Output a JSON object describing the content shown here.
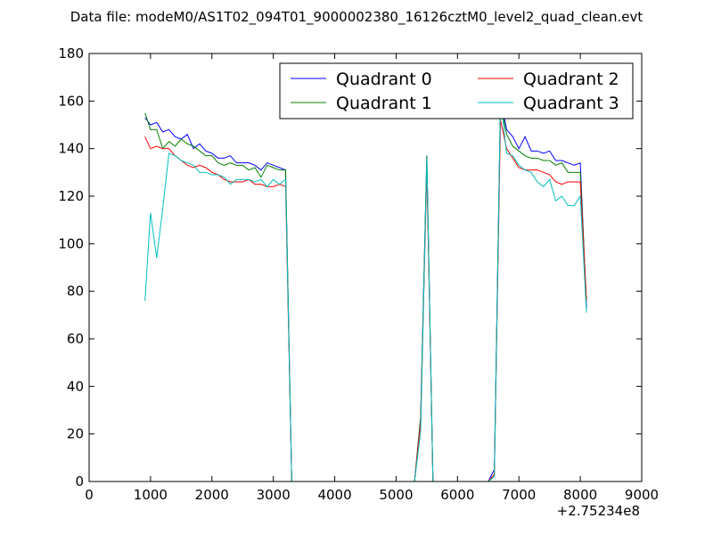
{
  "chart_data": {
    "type": "line",
    "title": "Data file: modeM0/AS1T02_094T01_9000002380_16126cztM0_level2_quad_clean.evt",
    "xlabel": "",
    "ylabel": "",
    "x_offset_label": "+2.75234e8",
    "xlim": [
      0,
      9000
    ],
    "ylim": [
      0,
      180
    ],
    "x_ticks": [
      0,
      1000,
      2000,
      3000,
      4000,
      5000,
      6000,
      7000,
      8000,
      9000
    ],
    "y_ticks": [
      0,
      20,
      40,
      60,
      80,
      100,
      120,
      140,
      160,
      180
    ],
    "x_tick_labels": [
      "0",
      "1000",
      "2000",
      "3000",
      "4000",
      "5000",
      "6000",
      "7000",
      "8000",
      "9000"
    ],
    "y_tick_labels": [
      "0",
      "20",
      "40",
      "60",
      "80",
      "100",
      "120",
      "140",
      "160",
      "180"
    ],
    "grid": false,
    "legend_position": "top-right",
    "series": [
      {
        "name": "Quadrant 0",
        "color": "#0000ff",
        "points": [
          [
            910,
            153
          ],
          [
            1000,
            150
          ],
          [
            1100,
            151
          ],
          [
            1200,
            147
          ],
          [
            1300,
            148
          ],
          [
            1400,
            145
          ],
          [
            1500,
            144
          ],
          [
            1600,
            146
          ],
          [
            1700,
            140
          ],
          [
            1800,
            142
          ],
          [
            1900,
            139
          ],
          [
            2000,
            138
          ],
          [
            2100,
            136
          ],
          [
            2200,
            136
          ],
          [
            2300,
            137
          ],
          [
            2400,
            134
          ],
          [
            2500,
            134
          ],
          [
            2600,
            134
          ],
          [
            2700,
            133
          ],
          [
            2800,
            131
          ],
          [
            2900,
            134
          ],
          [
            3000,
            133
          ],
          [
            3100,
            132
          ],
          [
            3200,
            131
          ],
          [
            3300,
            0
          ],
          [
            5300,
            0
          ],
          [
            5400,
            27
          ],
          [
            5500,
            137
          ],
          [
            5600,
            0
          ],
          [
            6500,
            0
          ],
          [
            6600,
            5
          ],
          [
            6700,
            161
          ],
          [
            6800,
            148
          ],
          [
            6900,
            145
          ],
          [
            7000,
            140
          ],
          [
            7100,
            145
          ],
          [
            7200,
            139
          ],
          [
            7300,
            139
          ],
          [
            7400,
            138
          ],
          [
            7500,
            139
          ],
          [
            7600,
            135
          ],
          [
            7700,
            135
          ],
          [
            7800,
            134
          ],
          [
            7900,
            133
          ],
          [
            8000,
            134
          ],
          [
            8100,
            73
          ]
        ]
      },
      {
        "name": "Quadrant 1",
        "color": "#008000",
        "points": [
          [
            910,
            155
          ],
          [
            1000,
            148
          ],
          [
            1100,
            148
          ],
          [
            1200,
            140
          ],
          [
            1300,
            143
          ],
          [
            1400,
            141
          ],
          [
            1500,
            144
          ],
          [
            1600,
            142
          ],
          [
            1700,
            141
          ],
          [
            1800,
            139
          ],
          [
            1900,
            137
          ],
          [
            2000,
            137
          ],
          [
            2100,
            134
          ],
          [
            2200,
            133
          ],
          [
            2300,
            134
          ],
          [
            2400,
            133
          ],
          [
            2500,
            133
          ],
          [
            2600,
            131
          ],
          [
            2700,
            132
          ],
          [
            2800,
            128
          ],
          [
            2900,
            133
          ],
          [
            3000,
            132
          ],
          [
            3100,
            131
          ],
          [
            3200,
            131
          ],
          [
            3300,
            0
          ],
          [
            5300,
            0
          ],
          [
            5400,
            27
          ],
          [
            5500,
            137
          ],
          [
            5600,
            0
          ],
          [
            6500,
            0
          ],
          [
            6600,
            3
          ],
          [
            6700,
            159
          ],
          [
            6800,
            146
          ],
          [
            6900,
            141
          ],
          [
            7000,
            139
          ],
          [
            7100,
            137
          ],
          [
            7200,
            136
          ],
          [
            7300,
            136
          ],
          [
            7400,
            135
          ],
          [
            7500,
            135
          ],
          [
            7600,
            133
          ],
          [
            7700,
            134
          ],
          [
            7800,
            130
          ],
          [
            7900,
            130
          ],
          [
            8000,
            130
          ],
          [
            8100,
            76
          ]
        ]
      },
      {
        "name": "Quadrant 2",
        "color": "#ff0000",
        "points": [
          [
            910,
            145
          ],
          [
            1000,
            140
          ],
          [
            1100,
            141
          ],
          [
            1200,
            140
          ],
          [
            1300,
            140
          ],
          [
            1400,
            137
          ],
          [
            1500,
            135
          ],
          [
            1600,
            133
          ],
          [
            1700,
            132
          ],
          [
            1800,
            133
          ],
          [
            1900,
            132
          ],
          [
            2000,
            130
          ],
          [
            2100,
            129
          ],
          [
            2200,
            127
          ],
          [
            2300,
            126
          ],
          [
            2400,
            126
          ],
          [
            2500,
            126
          ],
          [
            2600,
            127
          ],
          [
            2700,
            125
          ],
          [
            2800,
            125
          ],
          [
            2900,
            124
          ],
          [
            3000,
            124
          ],
          [
            3100,
            125
          ],
          [
            3200,
            124
          ],
          [
            3300,
            0
          ],
          [
            5300,
            0
          ],
          [
            5400,
            25
          ],
          [
            5500,
            131
          ],
          [
            5600,
            0
          ],
          [
            6500,
            0
          ],
          [
            6600,
            3
          ],
          [
            6700,
            152
          ],
          [
            6800,
            140
          ],
          [
            6900,
            136
          ],
          [
            7000,
            132
          ],
          [
            7100,
            131
          ],
          [
            7200,
            131
          ],
          [
            7300,
            131
          ],
          [
            7400,
            130
          ],
          [
            7500,
            129
          ],
          [
            7600,
            126
          ],
          [
            7700,
            125
          ],
          [
            7800,
            126
          ],
          [
            7900,
            126
          ],
          [
            8000,
            126
          ],
          [
            8100,
            76
          ]
        ]
      },
      {
        "name": "Quadrant 3",
        "color": "#00bfbf",
        "points": [
          [
            910,
            76
          ],
          [
            1000,
            113
          ],
          [
            1100,
            94
          ],
          [
            1200,
            115
          ],
          [
            1300,
            138
          ],
          [
            1400,
            137
          ],
          [
            1500,
            135
          ],
          [
            1600,
            134
          ],
          [
            1700,
            133
          ],
          [
            1800,
            130
          ],
          [
            1900,
            130
          ],
          [
            2000,
            129
          ],
          [
            2100,
            129
          ],
          [
            2200,
            128
          ],
          [
            2300,
            125
          ],
          [
            2400,
            127
          ],
          [
            2500,
            127
          ],
          [
            2600,
            127
          ],
          [
            2700,
            126
          ],
          [
            2800,
            127
          ],
          [
            2900,
            124
          ],
          [
            3000,
            127
          ],
          [
            3100,
            125
          ],
          [
            3200,
            127
          ],
          [
            3300,
            0
          ],
          [
            5300,
            0
          ],
          [
            5400,
            21
          ],
          [
            5500,
            136
          ],
          [
            5600,
            0
          ],
          [
            6500,
            0
          ],
          [
            6600,
            2
          ],
          [
            6700,
            161
          ],
          [
            6800,
            138
          ],
          [
            6900,
            137
          ],
          [
            7000,
            133
          ],
          [
            7100,
            131
          ],
          [
            7200,
            130
          ],
          [
            7300,
            126
          ],
          [
            7400,
            124
          ],
          [
            7500,
            127
          ],
          [
            7600,
            118
          ],
          [
            7700,
            120
          ],
          [
            7800,
            116
          ],
          [
            7900,
            116
          ],
          [
            8000,
            120
          ],
          [
            8100,
            71
          ]
        ]
      }
    ]
  }
}
